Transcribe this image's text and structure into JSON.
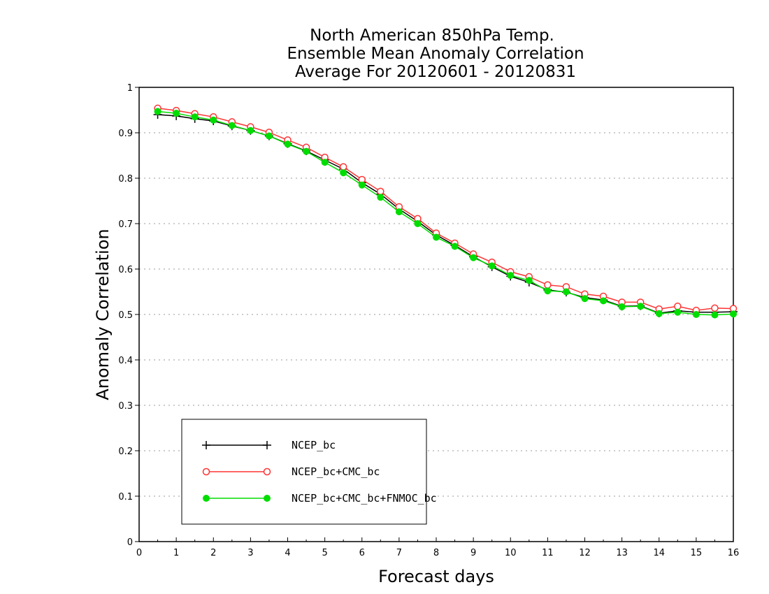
{
  "chart_data": {
    "type": "line",
    "title": [
      "North American 850hPa Temp.",
      "Ensemble Mean Anomaly Correlation",
      "Average For 20120601 - 20120831"
    ],
    "xlabel": "Forecast days",
    "ylabel": "Anomaly Correlation",
    "xlim": [
      0,
      16
    ],
    "ylim": [
      0,
      1
    ],
    "x_ticks": [
      "0",
      "1",
      "2",
      "3",
      "4",
      "5",
      "6",
      "7",
      "8",
      "9",
      "10",
      "11",
      "12",
      "13",
      "14",
      "15",
      "16"
    ],
    "y_ticks": [
      "0",
      "0.1",
      "0.2",
      "0.3",
      "0.4",
      "0.5",
      "0.6",
      "0.7",
      "0.8",
      "0.9",
      "1"
    ],
    "grid": "horizontal dotted",
    "legend_position": "bottom-left",
    "x": [
      0.5,
      1,
      1.5,
      2,
      2.5,
      3,
      3.5,
      4,
      4.5,
      5,
      5.5,
      6,
      6.5,
      7,
      7.5,
      8,
      8.5,
      9,
      9.5,
      10,
      10.5,
      11,
      11.5,
      12,
      12.5,
      13,
      13.5,
      14,
      14.5,
      15,
      15.5,
      16
    ],
    "series": [
      {
        "name": "NCEP_bc",
        "color": "#000000",
        "marker": "plus",
        "values": [
          0.94,
          0.937,
          0.931,
          0.926,
          0.915,
          0.905,
          0.893,
          0.876,
          0.86,
          0.84,
          0.82,
          0.79,
          0.765,
          0.732,
          0.705,
          0.675,
          0.652,
          0.627,
          0.605,
          0.584,
          0.571,
          0.554,
          0.549,
          0.537,
          0.532,
          0.518,
          0.519,
          0.503,
          0.508,
          0.505,
          0.505,
          0.506
        ]
      },
      {
        "name": "NCEP_bc+CMC_bc",
        "color": "#ff3333",
        "marker": "open-circle",
        "values": [
          0.954,
          0.949,
          0.942,
          0.935,
          0.924,
          0.913,
          0.901,
          0.884,
          0.868,
          0.846,
          0.825,
          0.797,
          0.771,
          0.737,
          0.711,
          0.679,
          0.657,
          0.633,
          0.615,
          0.594,
          0.583,
          0.565,
          0.561,
          0.545,
          0.54,
          0.527,
          0.527,
          0.512,
          0.518,
          0.509,
          0.514,
          0.513
        ]
      },
      {
        "name": "NCEP_bc+CMC_bc+FNMOC_bc",
        "color": "#00dd00",
        "marker": "filled-circle",
        "values": [
          0.947,
          0.943,
          0.935,
          0.928,
          0.916,
          0.905,
          0.893,
          0.875,
          0.859,
          0.835,
          0.812,
          0.785,
          0.758,
          0.726,
          0.7,
          0.67,
          0.65,
          0.625,
          0.607,
          0.586,
          0.575,
          0.552,
          0.55,
          0.535,
          0.53,
          0.517,
          0.518,
          0.502,
          0.505,
          0.5,
          0.499,
          0.501
        ]
      }
    ]
  }
}
